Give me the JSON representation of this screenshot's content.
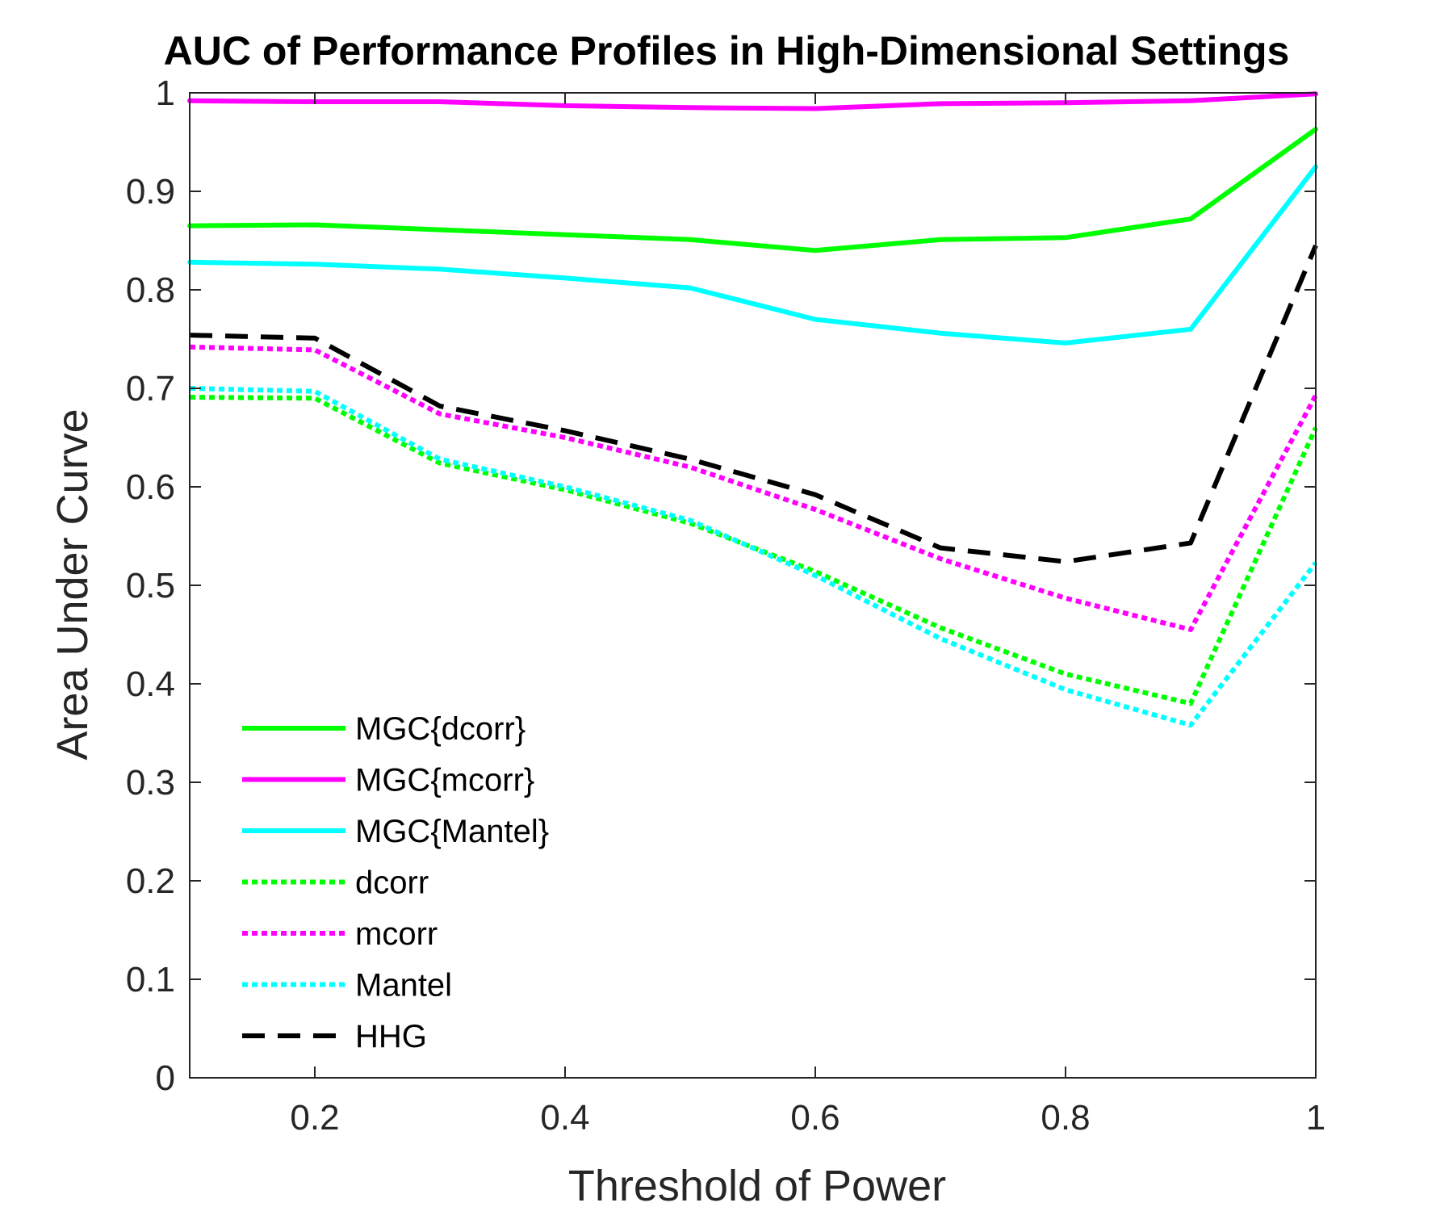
{
  "chart_data": {
    "type": "line",
    "title": "AUC of Performance Profiles in High-Dimensional Settings",
    "xlabel": "Threshold of Power",
    "ylabel": "Area Under Curve",
    "xlim": [
      0.1,
      1
    ],
    "ylim": [
      0,
      1
    ],
    "xticks": [
      0.2,
      0.4,
      0.6,
      0.8,
      1
    ],
    "xtick_labels": [
      "0.2",
      "0.4",
      "0.6",
      "0.8",
      "1"
    ],
    "yticks": [
      0,
      0.1,
      0.2,
      0.3,
      0.4,
      0.5,
      0.6,
      0.7,
      0.8,
      0.9,
      1
    ],
    "ytick_labels": [
      "0",
      "0.1",
      "0.2",
      "0.3",
      "0.4",
      "0.5",
      "0.6",
      "0.7",
      "0.8",
      "0.9",
      "1"
    ],
    "grid": false,
    "legend_position": "bottom-left",
    "x": [
      0.1,
      0.2,
      0.3,
      0.4,
      0.5,
      0.6,
      0.7,
      0.8,
      0.9,
      1.0
    ],
    "series": [
      {
        "name": "MGC{dcorr}",
        "color": "#00ff00",
        "style": "solid",
        "values": [
          0.865,
          0.866,
          0.861,
          0.856,
          0.851,
          0.84,
          0.851,
          0.853,
          0.872,
          0.963
        ]
      },
      {
        "name": "MGC{mcorr}",
        "color": "#ff00ff",
        "style": "solid",
        "values": [
          0.992,
          0.991,
          0.991,
          0.987,
          0.985,
          0.984,
          0.989,
          0.99,
          0.992,
          0.999
        ]
      },
      {
        "name": "MGC{Mantel}",
        "color": "#00ffff",
        "style": "solid",
        "values": [
          0.828,
          0.826,
          0.821,
          0.812,
          0.802,
          0.77,
          0.756,
          0.746,
          0.76,
          0.925
        ]
      },
      {
        "name": "dcorr",
        "color": "#00ff00",
        "style": "dotted",
        "values": [
          0.691,
          0.69,
          0.624,
          0.597,
          0.563,
          0.514,
          0.457,
          0.41,
          0.38,
          0.66
        ]
      },
      {
        "name": "mcorr",
        "color": "#ff00ff",
        "style": "dotted",
        "values": [
          0.742,
          0.739,
          0.674,
          0.65,
          0.62,
          0.577,
          0.527,
          0.487,
          0.455,
          0.693
        ]
      },
      {
        "name": "Mantel",
        "color": "#00ffff",
        "style": "dotted",
        "values": [
          0.7,
          0.697,
          0.628,
          0.6,
          0.566,
          0.51,
          0.446,
          0.394,
          0.358,
          0.523
        ]
      },
      {
        "name": "HHG",
        "color": "#000000",
        "style": "dashed",
        "values": [
          0.754,
          0.751,
          0.682,
          0.657,
          0.628,
          0.592,
          0.538,
          0.524,
          0.543,
          0.845
        ]
      }
    ]
  }
}
